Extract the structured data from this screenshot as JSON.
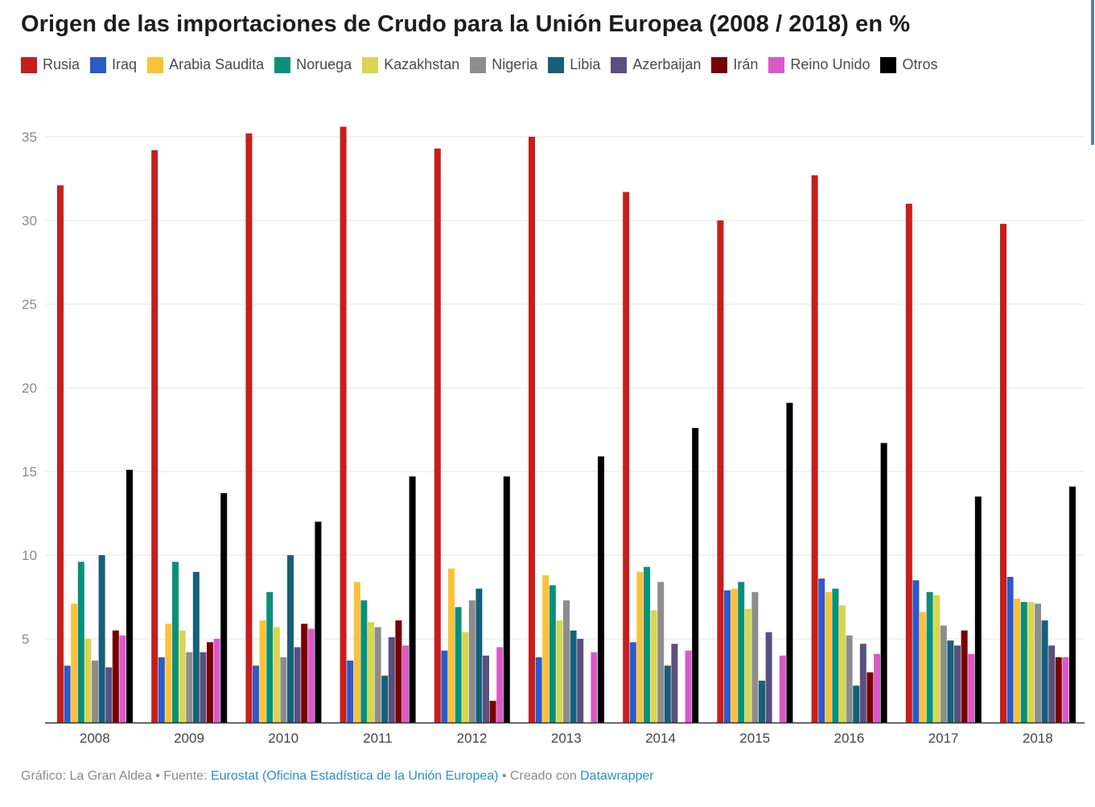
{
  "title": "Origen de las importaciones de Crudo para la Unión Europea (2008 / 2018) en %",
  "footer": {
    "prefix": "Gráfico: La Gran Aldea • Fuente: ",
    "source": "Eurostat (Oficina Estadística de la Unión Europea)",
    "middle": " • Creado con ",
    "tool": "Datawrapper"
  },
  "colors": {
    "grid": "#e4e4e4",
    "axis": "#333333",
    "tick_text": "#8a8a8a",
    "category_text": "#444444"
  },
  "chart_data": {
    "type": "bar",
    "title": "Origen de las importaciones de Crudo para la Unión Europea (2008 / 2018) en %",
    "xlabel": "",
    "ylabel": "",
    "ylim": [
      0,
      36
    ],
    "yticks": [
      5,
      10,
      15,
      20,
      25,
      30,
      35
    ],
    "grid": true,
    "legend_position": "top-left",
    "categories": [
      "2008",
      "2009",
      "2010",
      "2011",
      "2012",
      "2013",
      "2014",
      "2015",
      "2016",
      "2017",
      "2018"
    ],
    "series": [
      {
        "name": "Rusia",
        "color": "#c71e1d",
        "values": [
          32.1,
          34.2,
          35.2,
          35.6,
          34.3,
          35.0,
          31.7,
          30.0,
          32.7,
          31.0,
          29.8
        ]
      },
      {
        "name": "Iraq",
        "color": "#2d5ac9",
        "values": [
          3.4,
          3.9,
          3.4,
          3.7,
          4.3,
          3.9,
          4.8,
          7.9,
          8.6,
          8.5,
          8.7
        ]
      },
      {
        "name": "Arabia Saudita",
        "color": "#fbc139",
        "values": [
          7.1,
          5.9,
          6.1,
          8.4,
          9.2,
          8.8,
          9.0,
          8.0,
          7.8,
          6.6,
          7.4
        ]
      },
      {
        "name": "Noruega",
        "color": "#08907b",
        "values": [
          9.6,
          9.6,
          7.8,
          7.3,
          6.9,
          8.2,
          9.3,
          8.4,
          8.0,
          7.8,
          7.2
        ]
      },
      {
        "name": "Kazakhstan",
        "color": "#d8d550",
        "values": [
          5.0,
          5.5,
          5.7,
          6.0,
          5.4,
          6.1,
          6.7,
          6.8,
          7.0,
          7.6,
          7.2
        ]
      },
      {
        "name": "Nigeria",
        "color": "#8d8d8d",
        "values": [
          3.7,
          4.2,
          3.9,
          5.7,
          7.3,
          7.3,
          8.4,
          7.8,
          5.2,
          5.8,
          7.1
        ]
      },
      {
        "name": "Libia",
        "color": "#165f7a",
        "values": [
          10.0,
          9.0,
          10.0,
          2.8,
          8.0,
          5.5,
          3.4,
          2.5,
          2.2,
          4.9,
          6.1
        ]
      },
      {
        "name": "Azerbaijan",
        "color": "#5a5080",
        "values": [
          3.3,
          4.2,
          4.5,
          5.1,
          4.0,
          5.0,
          4.7,
          5.4,
          4.7,
          4.6,
          4.6
        ]
      },
      {
        "name": "Irán",
        "color": "#780000",
        "values": [
          5.5,
          4.8,
          5.9,
          6.1,
          1.3,
          0.0,
          0.0,
          0.0,
          3.0,
          5.5,
          3.9
        ]
      },
      {
        "name": "Reino Unido",
        "color": "#d959c8",
        "values": [
          5.2,
          5.0,
          5.6,
          4.6,
          4.5,
          4.2,
          4.3,
          4.0,
          4.1,
          4.1,
          3.9
        ]
      },
      {
        "name": "Otros",
        "color": "#000000",
        "values": [
          15.1,
          13.7,
          12.0,
          14.7,
          14.7,
          15.9,
          17.6,
          19.1,
          16.7,
          13.5,
          14.1
        ]
      }
    ]
  }
}
